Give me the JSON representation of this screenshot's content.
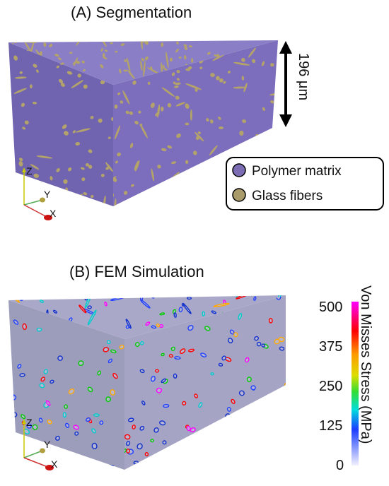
{
  "panel_a": {
    "title": "(A) Segmentation",
    "dimension_label": "196 μm",
    "legend": [
      {
        "label": "Polymer matrix",
        "color": "#7b6cb3"
      },
      {
        "label": "Glass fibers",
        "color": "#a99b6a"
      }
    ]
  },
  "panel_b": {
    "title": "(B) FEM Simulation",
    "colorbar": {
      "title": "Von Misses Stress (MPa)",
      "ticks": [
        "500",
        "375",
        "250",
        "125",
        "0"
      ],
      "colors": [
        "#ff00ff",
        "#ff0000",
        "#ffa500",
        "#ffff00",
        "#00ff00",
        "#00ffff",
        "#0000ff",
        "#ffffff"
      ]
    }
  },
  "axes": {
    "x": "X",
    "y": "Y",
    "z": "Z"
  },
  "colors": {
    "matrix_top": "#8a7fc6",
    "matrix_left": "#7064b0",
    "matrix_front": "#7c6ebc",
    "fiber": "#b3a36a",
    "fem_top": "#a9a8c8",
    "fem_left": "#9c9cbb",
    "fem_front": "#a5a4c4"
  }
}
